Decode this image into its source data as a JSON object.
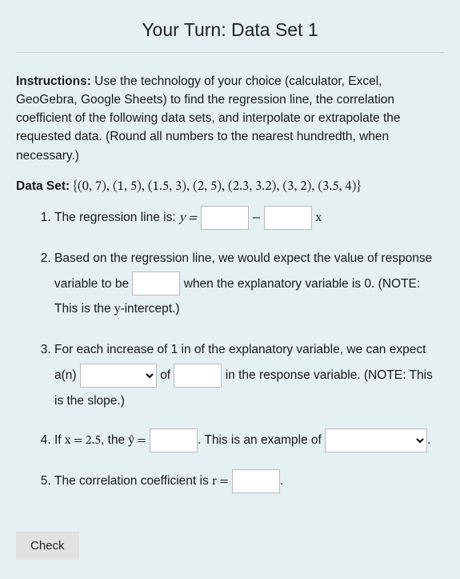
{
  "background_color": "#e4f0f1",
  "title": "Your Turn: Data Set 1",
  "instructions_label": "Instructions:",
  "instructions_text": " Use the technology of your choice (calculator, Excel, GeoGebra, Google Sheets) to find the regression line, the correlation coefficient of the following data sets, and interpolate or extrapolate the requested data. (Round all numbers to the nearest hundredth, when necessary.)",
  "dataset_label": "Data Set: ",
  "dataset_values": "{(0, 7), (1, 5), (1.5, 3), (2, 5), (2.3, 3.2), (3, 2), (3.5, 4)}",
  "q1": {
    "pre": "The regression line is: ",
    "eq_lhs": "y =",
    "mid": "−",
    "var": "x"
  },
  "q2": {
    "a": "Based on the regression line, we would expect the value of response variable to be ",
    "b": " when the explanatory variable is 0. (NOTE: This is the ",
    "c": "-intercept.)",
    "yvar": "y"
  },
  "q3": {
    "a": "For each increase of 1 in of the explanatory variable, we can expect a(n) ",
    "b": " of ",
    "c": " in the response variable. (NOTE: This is the slope.)"
  },
  "q4": {
    "a": "If ",
    "xval": "x = 2.5",
    "b": ", the ",
    "yhat": "ŷ =",
    "c": ". This is an example of ",
    "d": "."
  },
  "q5": {
    "a": "The correlation coefficient is ",
    "rvar": "r =",
    "b": "."
  },
  "check_label": "Check"
}
